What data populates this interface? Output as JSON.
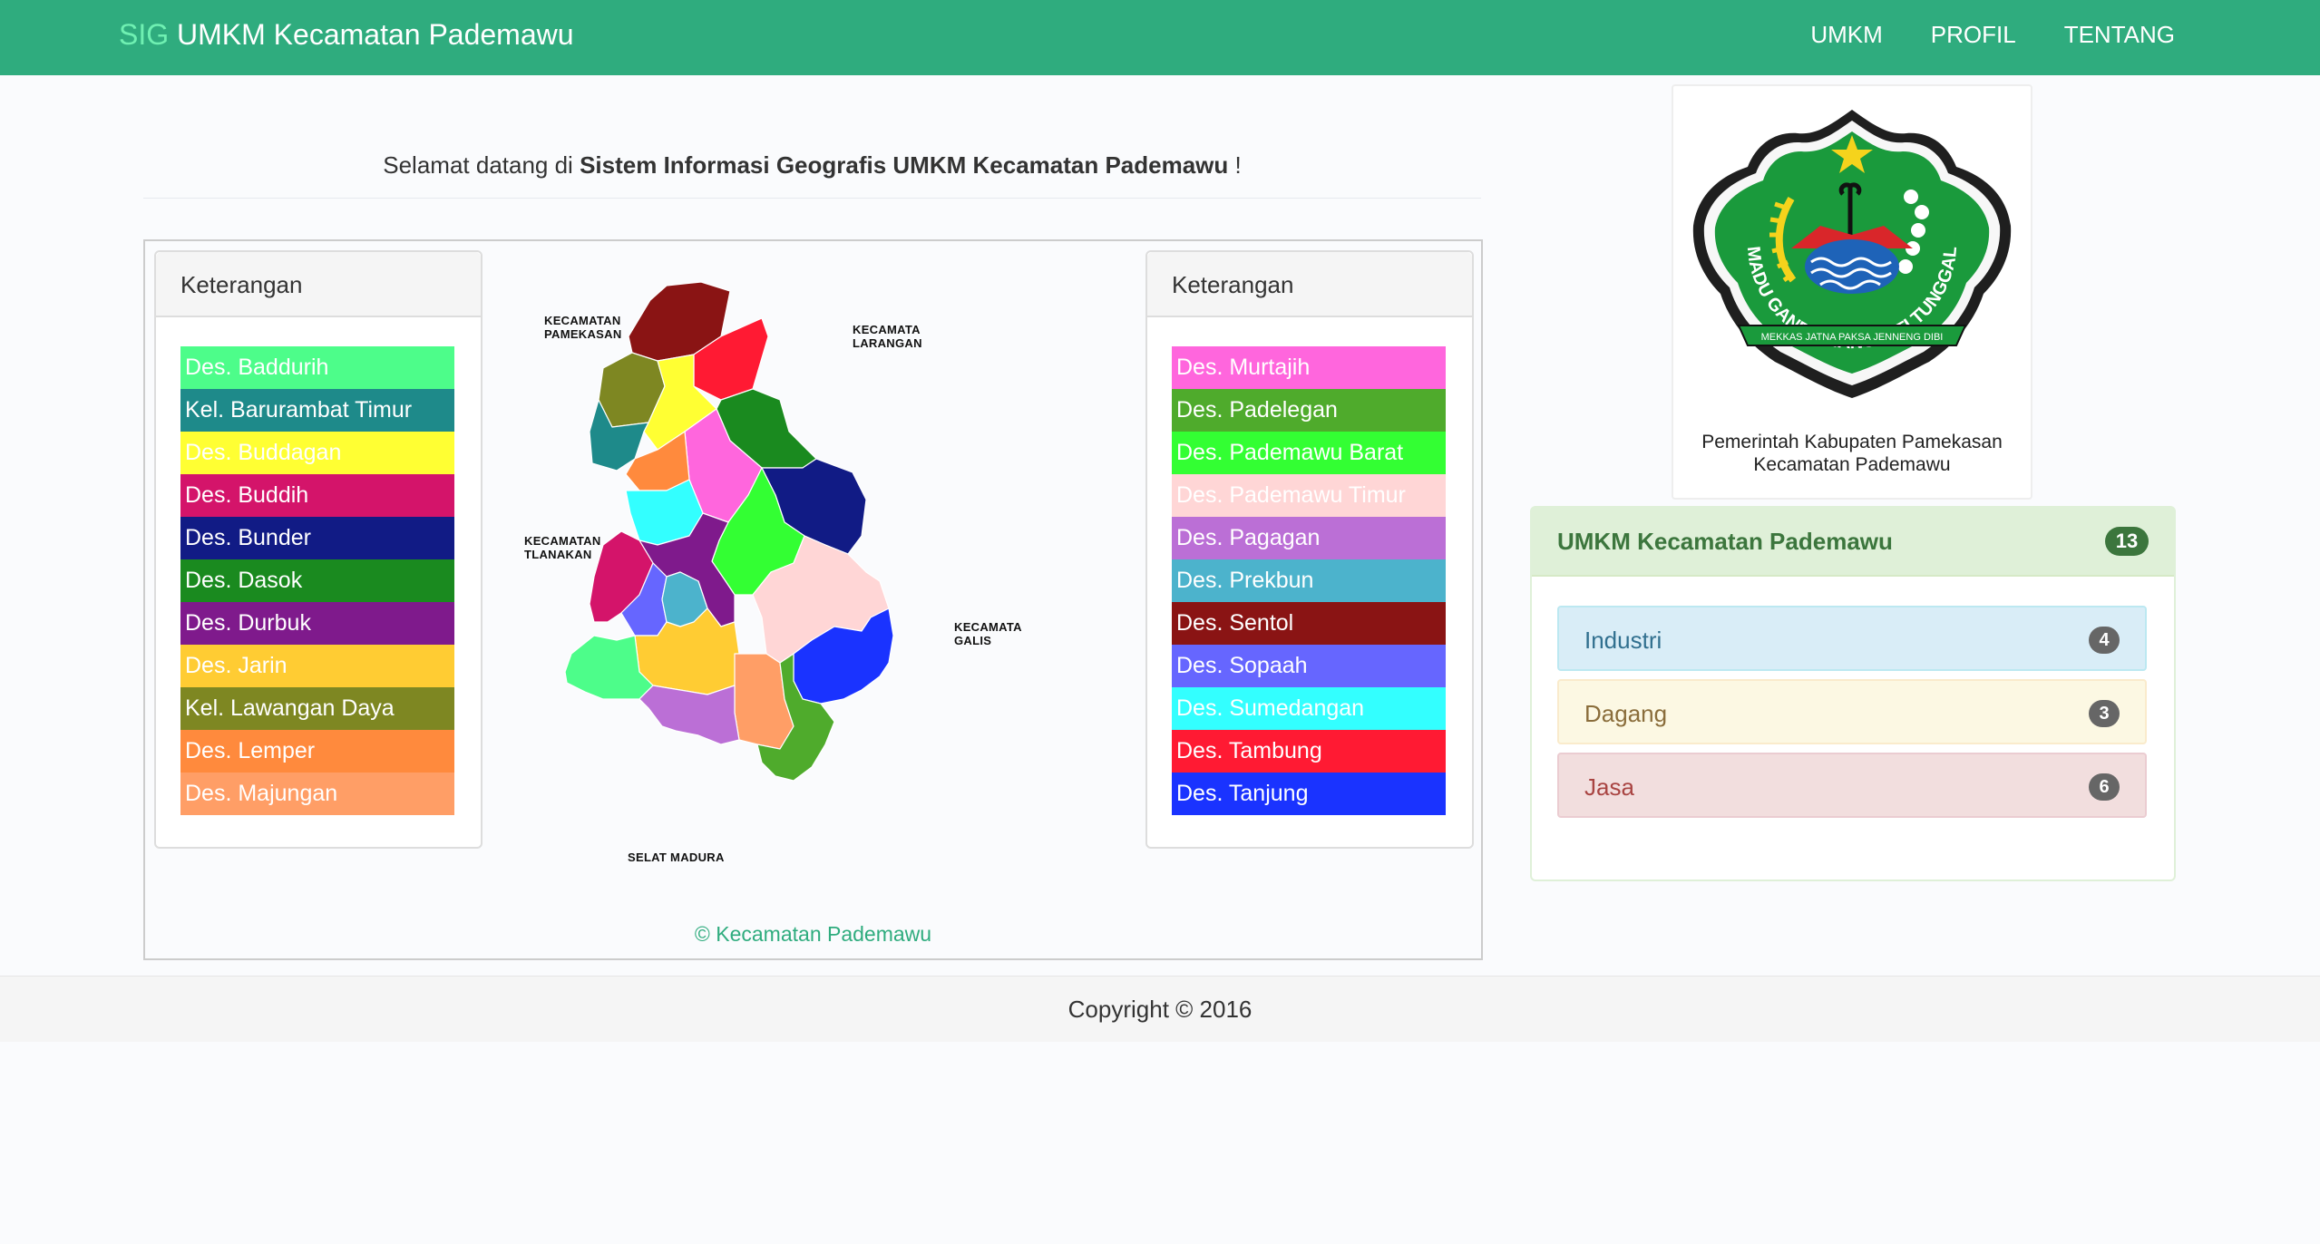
{
  "navbar": {
    "brand_prefix": "SIG",
    "brand_title": "UMKM Kecamatan Pademawu",
    "links": [
      "UMKM",
      "PROFIL",
      "TENTANG"
    ]
  },
  "welcome": {
    "prefix": "Selamat datang di",
    "bold": "Sistem Informasi Geografis UMKM Kecamatan Pademawu",
    "suffix": "!"
  },
  "legend_left": {
    "heading": "Keterangan",
    "items": [
      {
        "label": "Des. Baddurih",
        "color": "#4dfd8a"
      },
      {
        "label": "Kel. Barurambat Timur",
        "color": "#1e8a8a"
      },
      {
        "label": "Des. Buddagan",
        "color": "#ffff33"
      },
      {
        "label": "Des. Buddih",
        "color": "#d4146a"
      },
      {
        "label": "Des. Bunder",
        "color": "#111b85"
      },
      {
        "label": "Des. Dasok",
        "color": "#1a8a1f"
      },
      {
        "label": "Des. Durbuk",
        "color": "#7f1a8c"
      },
      {
        "label": "Des. Jarin",
        "color": "#ffcc33"
      },
      {
        "label": "Kel. Lawangan Daya",
        "color": "#7e8722"
      },
      {
        "label": "Des. Lemper",
        "color": "#ff8a3d"
      },
      {
        "label": "Des. Majungan",
        "color": "#ff9e66"
      }
    ]
  },
  "legend_right": {
    "heading": "Keterangan",
    "items": [
      {
        "label": "Des. Murtajih",
        "color": "#ff66dd"
      },
      {
        "label": "Des. Padelegan",
        "color": "#4fab2c"
      },
      {
        "label": "Des. Pademawu Barat",
        "color": "#33ff33"
      },
      {
        "label": "Des. Pademawu Timur",
        "color": "#ffd6d6"
      },
      {
        "label": "Des. Pagagan",
        "color": "#bb6fd6"
      },
      {
        "label": "Des. Prekbun",
        "color": "#4cb3cc"
      },
      {
        "label": "Des. Sentol",
        "color": "#8a1414"
      },
      {
        "label": "Des. Sopaah",
        "color": "#6666ff"
      },
      {
        "label": "Des. Sumedangan",
        "color": "#33ffff"
      },
      {
        "label": "Des. Tambung",
        "color": "#ff1a33"
      },
      {
        "label": "Des. Tanjung",
        "color": "#1a33ff"
      }
    ]
  },
  "map": {
    "labels": {
      "pamekasan": "KECAMATAN PAMEKASAN",
      "larangan": "KECAMATA LARANGAN",
      "tlanakan": "KECAMATAN TLANAKAN",
      "galis": "KECAMATA GALIS",
      "madura": "SELAT MADURA"
    },
    "credit": "© Kecamatan Pademawu"
  },
  "logo": {
    "motto_arc": "MADU GANDA MANGESTI TUNGGAL",
    "motto_ribbon": "MEKKAS JATNA PAKSA JENNENG DIBI",
    "caption_line1": "Pemerintah Kabupaten Pamekasan",
    "caption_line2": "Kecamatan Pademawu"
  },
  "umkm_panel": {
    "title": "UMKM Kecamatan Pademawu",
    "count": "13",
    "categories": [
      {
        "label": "Industri",
        "count": "4"
      },
      {
        "label": "Dagang",
        "count": "3"
      },
      {
        "label": "Jasa",
        "count": "6"
      }
    ]
  },
  "footer": {
    "copyright": "Copyright © 2016"
  }
}
